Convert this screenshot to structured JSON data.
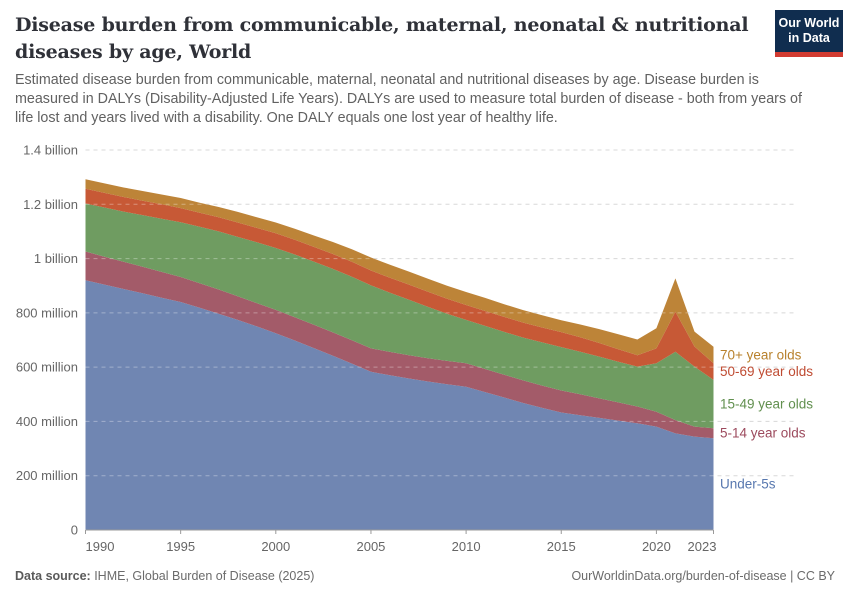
{
  "header": {
    "title_lines": [
      "Disease burden from communicable, maternal, neonatal & nutritional",
      "diseases by age, World"
    ],
    "subtitle_lines": [
      "Estimated disease burden from communicable, maternal, neonatal and nutritional diseases by age. Disease burden is",
      "measured in DALYs (Disability-Adjusted Life Years). DALYs are used to measure total burden of disease - both from years of",
      "life lost and years lived with a disability. One DALY equals one lost year of healthy life."
    ]
  },
  "logo": {
    "line1": "Our World",
    "line2": "in Data",
    "bg_color": "#102d4f",
    "accent_color": "#d23b31"
  },
  "chart_data": {
    "type": "area",
    "stacked": true,
    "title": "Disease burden from communicable, maternal, neonatal & nutritional diseases by age, World",
    "unit": "DALYs, millions",
    "ylim": [
      0,
      1400
    ],
    "grid": true,
    "legend_position": "right",
    "x": [
      1990,
      1991,
      1992,
      1993,
      1994,
      1995,
      1996,
      1997,
      1998,
      1999,
      2000,
      2001,
      2002,
      2003,
      2004,
      2005,
      2006,
      2007,
      2008,
      2009,
      2010,
      2011,
      2012,
      2013,
      2014,
      2015,
      2016,
      2017,
      2018,
      2019,
      2020,
      2021,
      2022,
      2023
    ],
    "x_ticks": [
      1990,
      1995,
      2000,
      2005,
      2010,
      2015,
      2020,
      2023
    ],
    "y_ticks": [
      {
        "value": 0,
        "label": "0"
      },
      {
        "value": 200,
        "label": "200 million"
      },
      {
        "value": 400,
        "label": "400 million"
      },
      {
        "value": 600,
        "label": "600 million"
      },
      {
        "value": 800,
        "label": "800 million"
      },
      {
        "value": 1000,
        "label": "1 billion"
      },
      {
        "value": 1200,
        "label": "1.2 billion"
      },
      {
        "value": 1400,
        "label": "1.4 billion"
      }
    ],
    "series": [
      {
        "name": "Under-5s",
        "color": "#7086b2",
        "label_color": "#5878af",
        "values": [
          920,
          904,
          888,
          872,
          856,
          840,
          819,
          797,
          774,
          750,
          725,
          698,
          670,
          642,
          613,
          583,
          570,
          558,
          547,
          537,
          528,
          508,
          488,
          468,
          450,
          433,
          423,
          413,
          403,
          393,
          381,
          356,
          344,
          338
        ]
      },
      {
        "name": "5-14 year olds",
        "color": "#a35b69",
        "label_color": "#9c4a5d",
        "values": [
          106,
          103,
          100,
          98,
          95,
          92,
          90,
          89,
          87,
          86,
          86,
          86,
          86,
          86,
          86,
          86,
          86,
          86,
          86,
          86,
          86,
          85,
          84,
          83,
          82,
          81,
          77,
          72,
          67,
          62,
          55,
          49,
          37,
          37
        ]
      },
      {
        "name": "15-49 year olds",
        "color": "#6f9c61",
        "label_color": "#62904f",
        "values": [
          177,
          181,
          185,
          190,
          196,
          202,
          208,
          214,
          219,
          224,
          228,
          231,
          233,
          234,
          234,
          232,
          218,
          204,
          189,
          174,
          160,
          159,
          158,
          158,
          159,
          160,
          157,
          154,
          150,
          147,
          178,
          252,
          221,
          178
        ]
      },
      {
        "name": "50-69 year olds",
        "color": "#c75936",
        "label_color": "#bf4b32",
        "values": [
          54,
          54,
          54,
          53,
          53,
          52,
          52,
          52,
          53,
          53,
          54,
          54,
          54,
          55,
          55,
          55,
          55,
          56,
          56,
          55,
          55,
          55,
          55,
          55,
          55,
          55,
          53,
          50,
          46,
          42,
          55,
          147,
          74,
          61
        ]
      },
      {
        "name": "70+ year olds",
        "color": "#bd8438",
        "label_color": "#b8812c",
        "values": [
          35,
          35,
          35,
          36,
          36,
          37,
          37,
          38,
          39,
          39,
          40,
          41,
          42,
          44,
          46,
          48,
          48,
          48,
          48,
          48,
          48,
          48,
          47,
          46,
          45,
          44,
          47,
          51,
          55,
          58,
          74,
          123,
          55,
          61
        ]
      }
    ]
  },
  "footer": {
    "source_label": "Data source:",
    "source_text": " IHME, Global Burden of Disease (2025)",
    "link_text": "OurWorldinData.org/burden-of-disease",
    "separator": " | ",
    "license_text": "CC BY"
  }
}
